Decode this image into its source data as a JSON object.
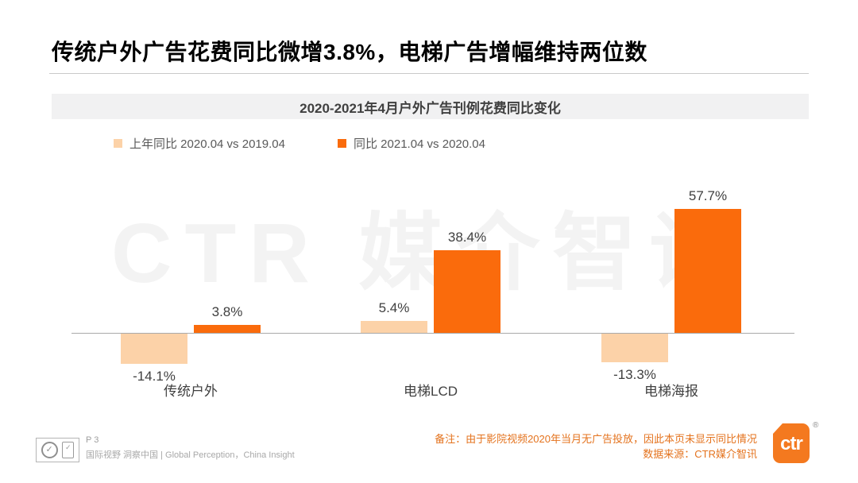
{
  "page": {
    "title": "传统户外广告花费同比微增3.8%，电梯广告增幅维持两位数",
    "watermark": "CTR 媒介智讯"
  },
  "colors": {
    "bar_previous": "#fcd2a8",
    "bar_current": "#fa6b0c",
    "note_text": "#e4731e",
    "logo_orange": "#f4791f"
  },
  "chart_data": {
    "type": "bar",
    "title": "2020-2021年4月户外广告刊例花费同比变化",
    "categories": [
      "传统户外",
      "电梯LCD",
      "电梯海报"
    ],
    "series": [
      {
        "name": "上年同比 2020.04 vs 2019.04",
        "values": [
          -14.1,
          5.4,
          -13.3
        ],
        "color": "#fcd2a8"
      },
      {
        "name": "同比 2021.04 vs 2020.04",
        "values": [
          3.8,
          38.4,
          57.7
        ],
        "color": "#fa6b0c"
      }
    ],
    "unit": "%",
    "value_labels": [
      "-14.1%",
      "3.8%",
      "5.4%",
      "38.4%",
      "-13.3%",
      "57.7%"
    ],
    "ylim": [
      -20,
      65
    ],
    "grid": false,
    "legend_position": "top-left"
  },
  "footer": {
    "page_number": "P 3",
    "tagline": "国际视野 洞察中国 | Global Perception，China Insight",
    "note_line1": "备注：由于影院视频2020年当月无广告投放，因此本页未显示同比情况",
    "note_line2": "数据来源：CTR媒介智讯",
    "logo_text": "ctr",
    "registered_mark": "®",
    "badge_check": "✓"
  }
}
